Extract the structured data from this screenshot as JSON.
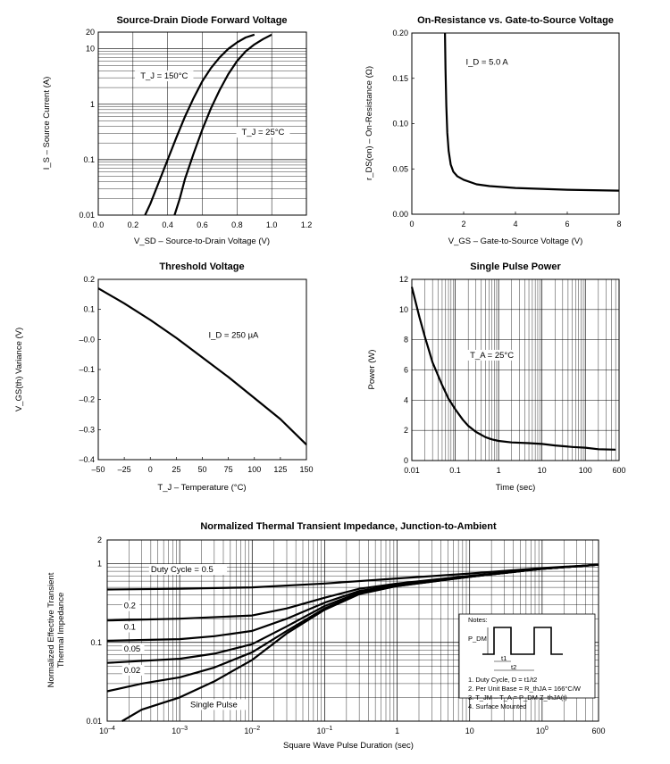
{
  "chart_data": [
    {
      "type": "line",
      "title": "Source-Drain Diode Forward Voltage",
      "xlabel": "V_SD – Source-to-Drain Voltage (V)",
      "ylabel": "I_S – Source Current (A)",
      "xlim": [
        0,
        1.2
      ],
      "ylim": [
        0.01,
        20
      ],
      "y_scale": "log",
      "grid": true,
      "x_ticks": [
        "0.0",
        "0.2",
        "0.4",
        "0.6",
        "0.8",
        "1.0",
        "1.2"
      ],
      "y_ticks": [
        "0.01",
        "0.1",
        "1",
        "10",
        "20"
      ],
      "series": [
        {
          "name": "T_J = 150°C",
          "x": [
            0.27,
            0.3,
            0.35,
            0.4,
            0.45,
            0.5,
            0.55,
            0.6,
            0.65,
            0.7,
            0.75,
            0.8,
            0.85,
            0.9
          ],
          "y": [
            0.01,
            0.016,
            0.04,
            0.1,
            0.25,
            0.6,
            1.3,
            2.6,
            4.5,
            7,
            10,
            13,
            16,
            18
          ]
        },
        {
          "name": "T_J = 25°C",
          "x": [
            0.44,
            0.47,
            0.5,
            0.55,
            0.6,
            0.65,
            0.7,
            0.75,
            0.8,
            0.85,
            0.9,
            0.95,
            1.0
          ],
          "y": [
            0.01,
            0.02,
            0.045,
            0.13,
            0.35,
            0.85,
            1.8,
            3.5,
            6,
            9,
            12,
            15,
            18
          ]
        }
      ],
      "annotations": [
        {
          "text": "T_J = 150°C",
          "x": 0.38,
          "y": 2.9
        },
        {
          "text": "T_J = 25°C",
          "x": 0.95,
          "y": 0.28
        }
      ]
    },
    {
      "type": "line",
      "title": "On-Resistance vs. Gate-to-Source Voltage",
      "xlabel": "V_GS – Gate-to-Source Voltage (V)",
      "ylabel": "r_DS(on) – On-Resistance (Ω)",
      "xlim": [
        0,
        8
      ],
      "ylim": [
        0,
        0.2
      ],
      "grid": false,
      "x_ticks": [
        "0",
        "2",
        "4",
        "6",
        "8"
      ],
      "y_ticks": [
        "0.00",
        "0.05",
        "0.10",
        "0.15",
        "0.20"
      ],
      "series": [
        {
          "name": "",
          "x": [
            1.28,
            1.3,
            1.33,
            1.37,
            1.42,
            1.5,
            1.6,
            1.75,
            2.0,
            2.5,
            3.0,
            4.0,
            5.0,
            6.0,
            7.0,
            8.0
          ],
          "y": [
            0.2,
            0.16,
            0.12,
            0.09,
            0.07,
            0.055,
            0.047,
            0.042,
            0.038,
            0.033,
            0.031,
            0.029,
            0.028,
            0.027,
            0.0265,
            0.026
          ]
        }
      ],
      "annotations": [
        {
          "text": "I_D = 5.0 A",
          "x": 2.9,
          "y": 0.165
        }
      ]
    },
    {
      "type": "line",
      "title": "Threshold Voltage",
      "xlabel": "T_J – Temperature (°C)",
      "ylabel": "V_GS(th) Variance (V)",
      "xlim": [
        -50,
        150
      ],
      "ylim": [
        -0.4,
        0.2
      ],
      "grid": false,
      "x_ticks": [
        "–50",
        "–25",
        "0",
        "25",
        "50",
        "75",
        "100",
        "125",
        "150"
      ],
      "y_ticks": [
        "0.2",
        "0.1",
        "–0.0",
        "–0.1",
        "–0.2",
        "–0.3",
        "–0.4"
      ],
      "series": [
        {
          "name": "",
          "x": [
            -50,
            -25,
            0,
            25,
            50,
            75,
            100,
            125,
            150
          ],
          "y": [
            0.17,
            0.12,
            0.065,
            0.005,
            -0.06,
            -0.125,
            -0.195,
            -0.265,
            -0.35
          ]
        }
      ],
      "annotations": [
        {
          "text": "I_D = 250 µA",
          "x": 80,
          "y": 0.005
        }
      ]
    },
    {
      "type": "line",
      "title": "Single Pulse Power",
      "xlabel": "Time (sec)",
      "ylabel": "Power (W)",
      "xlim": [
        0.01,
        600
      ],
      "x_scale": "log",
      "ylim": [
        0,
        12
      ],
      "grid": true,
      "x_ticks": [
        "0.01",
        "0.1",
        "1",
        "10",
        "100",
        "600"
      ],
      "y_ticks": [
        "0",
        "2",
        "4",
        "6",
        "8",
        "10",
        "12"
      ],
      "series": [
        {
          "name": "",
          "x": [
            0.01,
            0.015,
            0.02,
            0.03,
            0.05,
            0.07,
            0.1,
            0.15,
            0.2,
            0.3,
            0.5,
            0.7,
            1,
            2,
            5,
            10,
            20,
            50,
            100,
            200,
            500
          ],
          "y": [
            11.5,
            9.5,
            8.2,
            6.5,
            5.0,
            4.1,
            3.4,
            2.7,
            2.3,
            1.9,
            1.55,
            1.4,
            1.3,
            1.2,
            1.15,
            1.1,
            1.0,
            0.9,
            0.85,
            0.75,
            0.72
          ]
        }
      ],
      "annotations": [
        {
          "text": "T_A = 25°C",
          "x": 0.7,
          "y": 6.8
        }
      ]
    },
    {
      "type": "line",
      "title": "Normalized Thermal Transient Impedance, Junction-to-Ambient",
      "xlabel": "Square Wave Pulse Duration (sec)",
      "ylabel": "Normalized Effective Transient Thermal Impedance",
      "xlim": [
        0.0001,
        600
      ],
      "x_scale": "log",
      "ylim": [
        0.01,
        2
      ],
      "y_scale": "log",
      "grid": true,
      "x_ticks": [
        "10–4",
        "10–3",
        "10–2",
        "10–1",
        "1",
        "10",
        "100",
        "600"
      ],
      "y_ticks": [
        "0.01",
        "0.1",
        "1",
        "2"
      ],
      "series": [
        {
          "name": "Duty Cycle, D = 0.5",
          "x": [
            0.0001,
            0.001,
            0.01,
            0.1,
            1,
            10,
            100,
            600
          ],
          "y": [
            0.47,
            0.48,
            0.5,
            0.56,
            0.65,
            0.75,
            0.88,
            0.97
          ]
        },
        {
          "name": "0.2",
          "x": [
            0.0001,
            0.001,
            0.01,
            0.03,
            0.1,
            0.3,
            1,
            10,
            100,
            600
          ],
          "y": [
            0.19,
            0.2,
            0.22,
            0.27,
            0.37,
            0.48,
            0.56,
            0.7,
            0.86,
            0.97
          ]
        },
        {
          "name": "0.1",
          "x": [
            0.0001,
            0.001,
            0.003,
            0.01,
            0.03,
            0.1,
            0.3,
            1,
            10,
            100,
            600
          ],
          "y": [
            0.105,
            0.11,
            0.12,
            0.14,
            0.2,
            0.32,
            0.45,
            0.54,
            0.69,
            0.86,
            0.97
          ]
        },
        {
          "name": "0.05",
          "x": [
            0.0001,
            0.001,
            0.003,
            0.01,
            0.03,
            0.1,
            0.3,
            1,
            10,
            100,
            600
          ],
          "y": [
            0.055,
            0.062,
            0.072,
            0.095,
            0.16,
            0.29,
            0.43,
            0.53,
            0.68,
            0.86,
            0.97
          ]
        },
        {
          "name": "0.02",
          "x": [
            0.0001,
            0.0003,
            0.001,
            0.003,
            0.01,
            0.03,
            0.1,
            0.3,
            1,
            10,
            100,
            600
          ],
          "y": [
            0.024,
            0.03,
            0.036,
            0.048,
            0.075,
            0.14,
            0.27,
            0.42,
            0.52,
            0.68,
            0.86,
            0.97
          ]
        },
        {
          "name": "Single Pulse",
          "x": [
            0.00016,
            0.0003,
            0.001,
            0.003,
            0.01,
            0.03,
            0.1,
            0.3,
            1,
            10,
            100,
            600
          ],
          "y": [
            0.01,
            0.014,
            0.02,
            0.032,
            0.06,
            0.13,
            0.26,
            0.41,
            0.52,
            0.68,
            0.86,
            0.97
          ]
        }
      ],
      "annotations": [
        {
          "text": "Duty Cycle = 0.5",
          "x": 0.0004,
          "y": 0.78
        },
        {
          "text": "0.2",
          "x": 0.00017,
          "y": 0.27
        },
        {
          "text": "0.1",
          "x": 0.00017,
          "y": 0.145
        },
        {
          "text": "0.05",
          "x": 0.00017,
          "y": 0.077
        },
        {
          "text": "0.02",
          "x": 0.00017,
          "y": 0.041
        },
        {
          "text": "Single Pulse",
          "x": 0.0014,
          "y": 0.015
        }
      ],
      "notes": {
        "title": "Notes:",
        "pdm_label": "P_DM",
        "t1_label": "t1",
        "t2_label": "t2",
        "lines": [
          "1. Duty Cycle, D = t1/t2",
          "2. Per Unit Base = R_thJA = 166°C/W",
          "3. T_JM – T_A = P_DM Z_thJA(t)",
          "4. Surface Mounted"
        ]
      }
    }
  ]
}
